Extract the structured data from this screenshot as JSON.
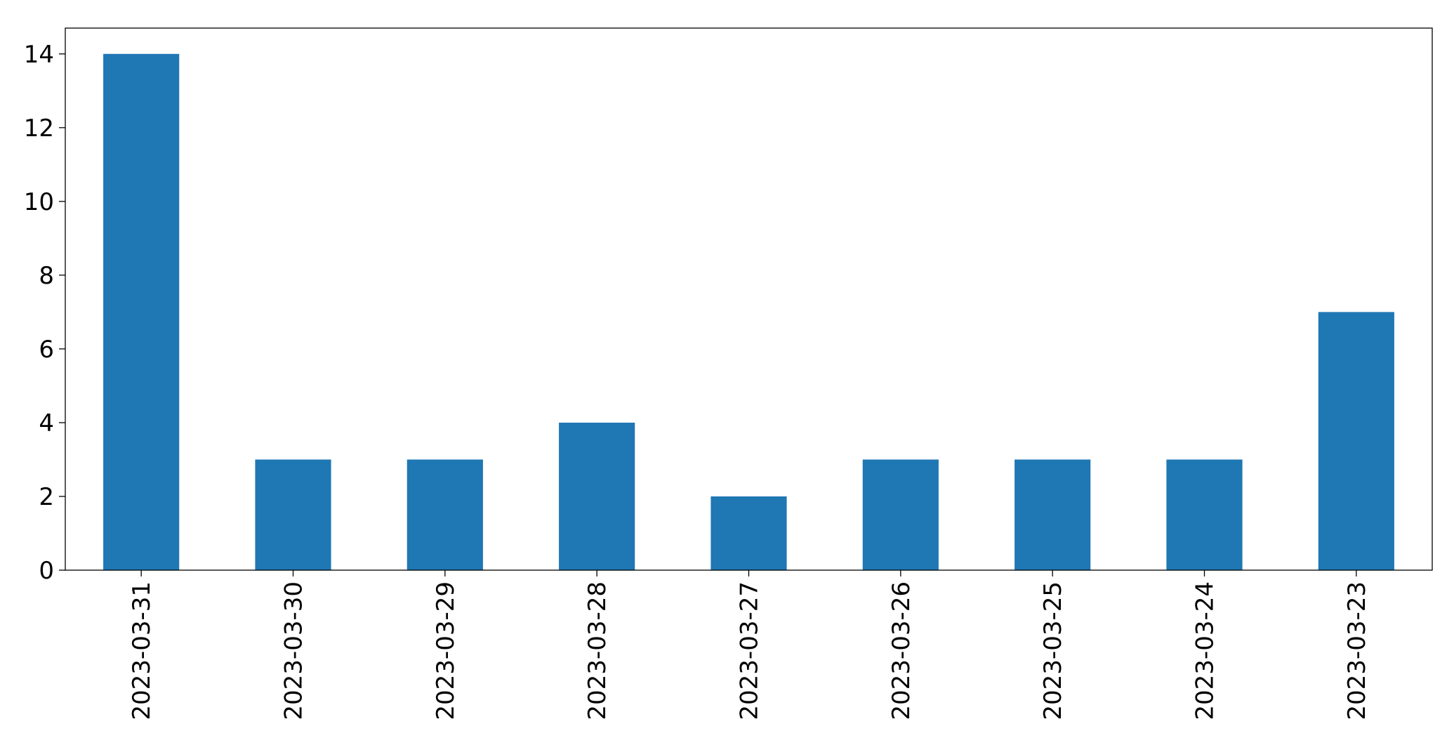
{
  "chart_data": {
    "type": "bar",
    "title": "",
    "xlabel": "",
    "ylabel": "",
    "categories": [
      "2023-03-31",
      "2023-03-30",
      "2023-03-29",
      "2023-03-28",
      "2023-03-27",
      "2023-03-26",
      "2023-03-25",
      "2023-03-24",
      "2023-03-23"
    ],
    "values": [
      14,
      3,
      3,
      4,
      2,
      3,
      3,
      3,
      7
    ],
    "ylim": [
      0,
      14.7
    ],
    "yticks": [
      0,
      2,
      4,
      6,
      8,
      10,
      12,
      14
    ],
    "grid": false,
    "legend": "none",
    "bar_color": "#1f77b4"
  }
}
